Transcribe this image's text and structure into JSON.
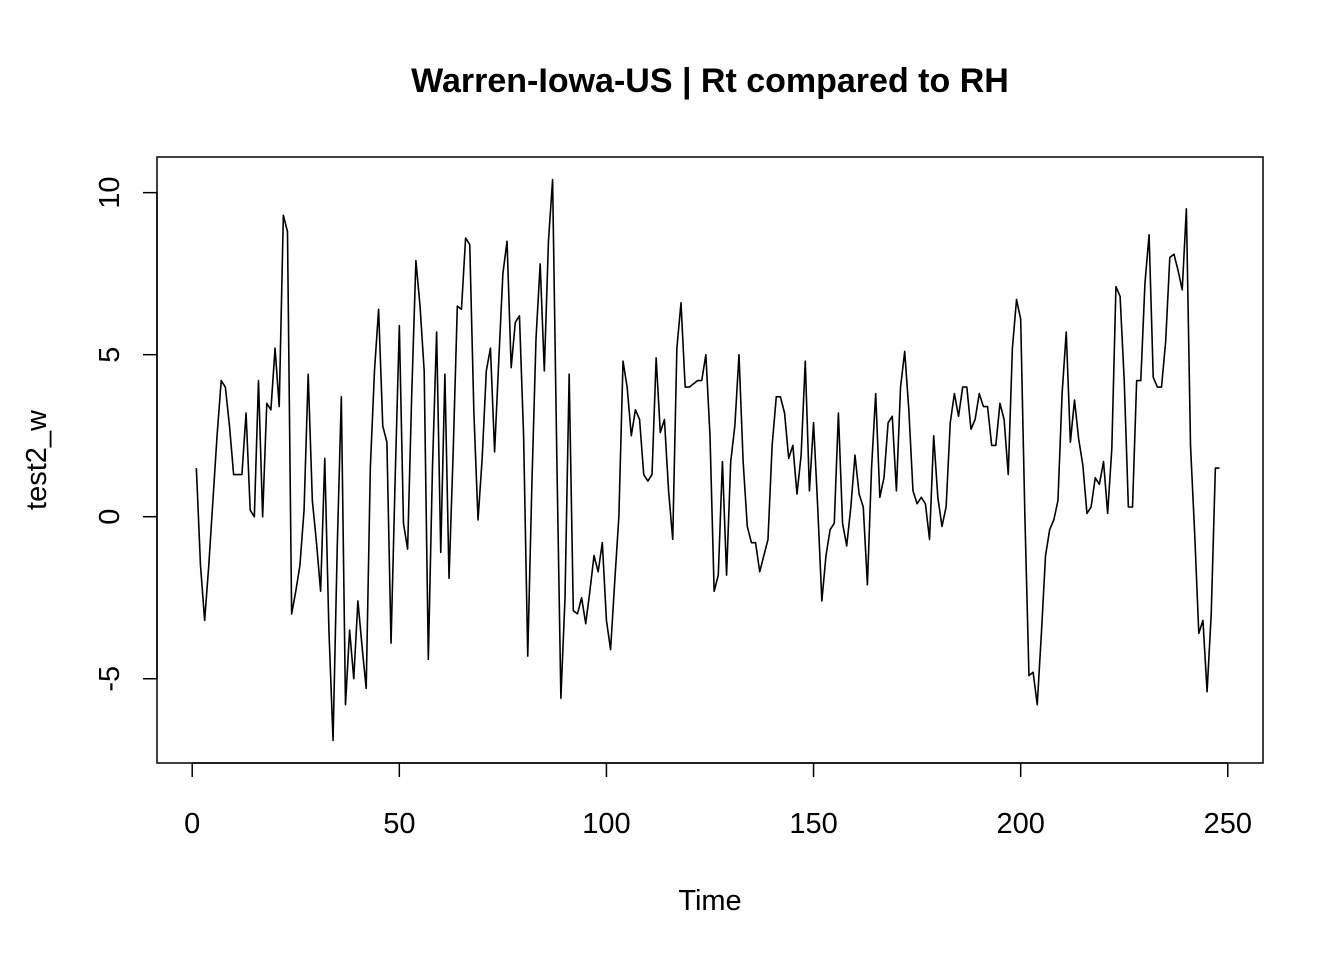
{
  "chart_data": {
    "type": "line",
    "title": "Warren-Iowa-US | Rt compared to RH",
    "xlabel": "Time",
    "ylabel": "test2_w",
    "xlim": [
      -8.5,
      258.5
    ],
    "ylim": [
      -7.6,
      11.1
    ],
    "x_ticks": [
      0,
      50,
      100,
      150,
      200,
      250
    ],
    "y_ticks": [
      -5,
      0,
      5,
      10
    ],
    "x_tick_labels": [
      "0",
      "50",
      "100",
      "150",
      "200",
      "250"
    ],
    "y_tick_labels": [
      "-5",
      "0",
      "5",
      "10"
    ],
    "grid": false,
    "legend": "none",
    "line_color": "#000000",
    "series": [
      {
        "x": [
          1,
          2,
          3,
          4,
          5,
          6,
          7,
          8,
          9,
          10,
          11,
          12,
          13,
          14,
          15,
          16,
          17,
          18,
          19,
          20,
          21,
          22,
          23,
          24,
          25,
          26,
          27,
          28,
          29,
          30,
          31,
          32,
          33,
          34,
          35,
          36,
          37,
          38,
          39,
          40,
          41,
          42,
          43,
          44,
          45,
          46,
          47,
          48,
          49,
          50,
          51,
          52,
          53,
          54,
          55,
          56,
          57,
          58,
          59,
          60,
          61,
          62,
          63,
          64,
          65,
          66,
          67,
          68,
          69,
          70,
          71,
          72,
          73,
          74,
          75,
          76,
          77,
          78,
          79,
          80,
          81,
          82,
          83,
          84,
          85,
          86,
          87,
          88,
          89,
          90,
          91,
          92,
          93,
          94,
          95,
          96,
          97,
          98,
          99,
          100,
          101,
          102,
          103,
          104,
          105,
          106,
          107,
          108,
          109,
          110,
          111,
          112,
          113,
          114,
          115,
          116,
          117,
          118,
          119,
          120,
          121,
          122,
          123,
          124,
          125,
          126,
          127,
          128,
          129,
          130,
          131,
          132,
          133,
          134,
          135,
          136,
          137,
          138,
          139,
          140,
          141,
          142,
          143,
          144,
          145,
          146,
          147,
          148,
          149,
          150,
          151,
          152,
          153,
          154,
          155,
          156,
          157,
          158,
          159,
          160,
          161,
          162,
          163,
          164,
          165,
          166,
          167,
          168,
          169,
          170,
          171,
          172,
          173,
          174,
          175,
          176,
          177,
          178,
          179,
          180,
          181,
          182,
          183,
          184,
          185,
          186,
          187,
          188,
          189,
          190,
          191,
          192,
          193,
          194,
          195,
          196,
          197,
          198,
          199,
          200,
          201,
          202,
          203,
          204,
          205,
          206,
          207,
          208,
          209,
          210,
          211,
          212,
          213,
          214,
          215,
          216,
          217,
          218,
          219,
          220,
          221,
          222,
          223,
          224,
          225,
          226,
          227,
          228,
          229,
          230,
          231,
          232,
          233,
          234,
          235,
          236,
          237,
          238,
          239,
          240,
          241,
          242,
          243,
          244,
          245,
          246,
          247,
          248
        ],
        "values": [
          1.5,
          -1.5,
          -3.2,
          -1.5,
          0.5,
          2.5,
          4.2,
          4.0,
          2.8,
          1.3,
          1.3,
          1.3,
          3.2,
          0.2,
          0.0,
          4.2,
          0.0,
          3.5,
          3.3,
          5.2,
          3.4,
          9.3,
          8.8,
          -3.0,
          -2.3,
          -1.5,
          0.2,
          4.4,
          0.5,
          -0.8,
          -2.3,
          1.8,
          -3.5,
          -6.9,
          -1.0,
          3.7,
          -5.8,
          -3.5,
          -5.0,
          -2.6,
          -4.0,
          -5.3,
          1.5,
          4.5,
          6.4,
          2.8,
          2.3,
          -3.9,
          1.2,
          5.9,
          -0.2,
          -1.0,
          3.8,
          7.9,
          6.5,
          4.5,
          -4.4,
          1.5,
          5.7,
          -1.1,
          4.4,
          -1.9,
          2.0,
          6.5,
          6.4,
          8.6,
          8.4,
          3.2,
          -0.1,
          1.8,
          4.5,
          5.2,
          2.0,
          4.8,
          7.5,
          8.5,
          4.6,
          6.0,
          6.2,
          2.5,
          -4.3,
          1.0,
          5.5,
          7.8,
          4.5,
          8.5,
          10.4,
          2.0,
          -5.6,
          -2.5,
          4.4,
          -2.9,
          -3.0,
          -2.5,
          -3.3,
          -2.3,
          -1.2,
          -1.7,
          -0.8,
          -3.2,
          -4.1,
          -2.0,
          0.0,
          4.8,
          4.0,
          2.5,
          3.3,
          3.0,
          1.3,
          1.1,
          1.3,
          4.9,
          2.6,
          3.0,
          0.8,
          -0.7,
          5.2,
          6.6,
          4.0,
          4.0,
          4.1,
          4.2,
          4.2,
          5.0,
          2.5,
          -2.3,
          -1.8,
          1.7,
          -1.8,
          1.7,
          2.8,
          5.0,
          1.7,
          -0.3,
          -0.8,
          -0.8,
          -1.7,
          -1.2,
          -0.7,
          2.2,
          3.7,
          3.7,
          3.2,
          1.8,
          2.2,
          0.7,
          1.9,
          4.8,
          0.8,
          2.9,
          0.3,
          -2.6,
          -1.2,
          -0.4,
          -0.2,
          3.2,
          -0.2,
          -0.9,
          0.3,
          1.9,
          0.7,
          0.3,
          -2.1,
          1.5,
          3.8,
          0.6,
          1.2,
          2.9,
          3.1,
          0.8,
          4.0,
          5.1,
          3.3,
          0.8,
          0.4,
          0.6,
          0.4,
          -0.7,
          2.5,
          0.6,
          -0.3,
          0.3,
          2.9,
          3.8,
          3.1,
          4.0,
          4.0,
          2.7,
          3.0,
          3.8,
          3.4,
          3.4,
          2.2,
          2.2,
          3.5,
          3.0,
          1.3,
          5.2,
          6.7,
          6.1,
          0.1,
          -4.9,
          -4.8,
          -5.8,
          -3.6,
          -1.2,
          -0.4,
          -0.1,
          0.5,
          3.8,
          5.7,
          2.3,
          3.6,
          2.4,
          1.6,
          0.1,
          0.3,
          1.2,
          1.0,
          1.7,
          0.1,
          2.1,
          7.1,
          6.8,
          4.2,
          0.3,
          0.3,
          4.2,
          4.2,
          7.2,
          8.7,
          4.3,
          4.0,
          4.0,
          5.4,
          8.0,
          8.1,
          7.6,
          7.0,
          9.5,
          2.2,
          -0.5,
          -3.6,
          -3.2,
          -5.4,
          -3.0,
          1.5,
          1.5
        ]
      }
    ]
  }
}
